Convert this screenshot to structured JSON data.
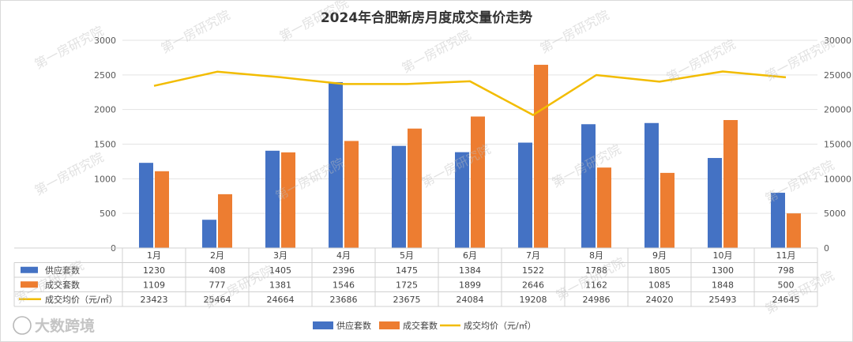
{
  "chart_data": {
    "type": "bar+line",
    "title": "2024年合肥新房月度成交量价走势",
    "categories": [
      "1月",
      "2月",
      "3月",
      "4月",
      "5月",
      "6月",
      "7月",
      "8月",
      "9月",
      "10月",
      "11月"
    ],
    "series": [
      {
        "name": "供应套数",
        "type": "bar",
        "axis": "left",
        "color": "#4472C4",
        "values": [
          1230,
          408,
          1405,
          2396,
          1475,
          1384,
          1522,
          1788,
          1805,
          1300,
          798
        ]
      },
      {
        "name": "成交套数",
        "type": "bar",
        "axis": "left",
        "color": "#ED7D31",
        "values": [
          1109,
          777,
          1381,
          1546,
          1725,
          1899,
          2646,
          1162,
          1085,
          1848,
          500
        ]
      },
      {
        "name": "成交均价（元/㎡）",
        "type": "line",
        "axis": "right",
        "color": "#F2BC00",
        "values": [
          23423,
          25464,
          24664,
          23686,
          23675,
          24084,
          19208,
          24986,
          24020,
          25493,
          24645
        ]
      }
    ],
    "y_left": {
      "min": 0,
      "max": 3000,
      "ticks": [
        "0",
        "500",
        "1000",
        "1500",
        "2000",
        "2500",
        "3000"
      ]
    },
    "y_right": {
      "min": 0,
      "max": 30000,
      "ticks": [
        "0",
        "5000",
        "10000",
        "15000",
        "20000",
        "25000",
        "30000"
      ]
    },
    "grid": true,
    "legend": "bottom",
    "data_table": true
  },
  "watermark": "第一房研究院",
  "logo_text": "大数跨境"
}
